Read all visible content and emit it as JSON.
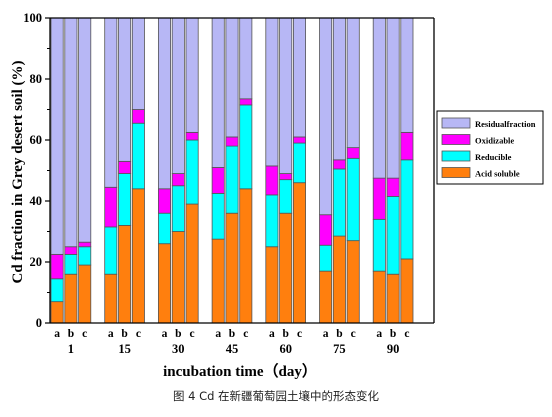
{
  "caption": "图 4 Cd 在新疆葡萄园土壤中的形态变化",
  "chart_data": {
    "type": "bar",
    "stacked": true,
    "xlabel": "incubation time（day）",
    "ylabel": "Cd fraction in Grey desert soil (%)",
    "ylim": [
      0,
      100
    ],
    "yticks": [
      0,
      20,
      40,
      60,
      80,
      100
    ],
    "groups": [
      "1",
      "15",
      "30",
      "45",
      "60",
      "75",
      "90"
    ],
    "samples": [
      "a",
      "b",
      "c"
    ],
    "legend_position": "right",
    "series": [
      {
        "name": "Acid soluble",
        "color": "#ff7f0e",
        "values": [
          [
            7,
            16,
            19
          ],
          [
            16,
            32,
            44
          ],
          [
            26,
            30,
            39
          ],
          [
            27.5,
            36,
            44
          ],
          [
            25,
            36,
            46
          ],
          [
            17,
            28.5,
            27
          ],
          [
            17,
            16,
            21
          ]
        ]
      },
      {
        "name": "Reducible",
        "color": "#00ffff",
        "values": [
          [
            7.5,
            6.5,
            6
          ],
          [
            15.5,
            17,
            21.5
          ],
          [
            10,
            15,
            21
          ],
          [
            15,
            22,
            27.5
          ],
          [
            17,
            11,
            13
          ],
          [
            8.5,
            22,
            27
          ],
          [
            17,
            25.5,
            32.5
          ]
        ]
      },
      {
        "name": "Oxidizable",
        "color": "#ff00ff",
        "values": [
          [
            8,
            2.5,
            1.5
          ],
          [
            13,
            4,
            4.5
          ],
          [
            8,
            4,
            2.5
          ],
          [
            8.5,
            3,
            2
          ],
          [
            9.5,
            2,
            2
          ],
          [
            10,
            3,
            3.5
          ],
          [
            13.5,
            6,
            9
          ]
        ]
      },
      {
        "name": "Residualfraction",
        "color": "#b7b7f5",
        "values": [
          [
            77.5,
            75,
            73.5
          ],
          [
            55.5,
            47,
            30
          ],
          [
            56,
            51,
            37.5
          ],
          [
            49,
            39,
            26.5
          ],
          [
            48.5,
            51,
            39
          ],
          [
            64.5,
            46.5,
            42.5
          ],
          [
            52.5,
            52.5,
            37.5
          ]
        ]
      }
    ]
  }
}
